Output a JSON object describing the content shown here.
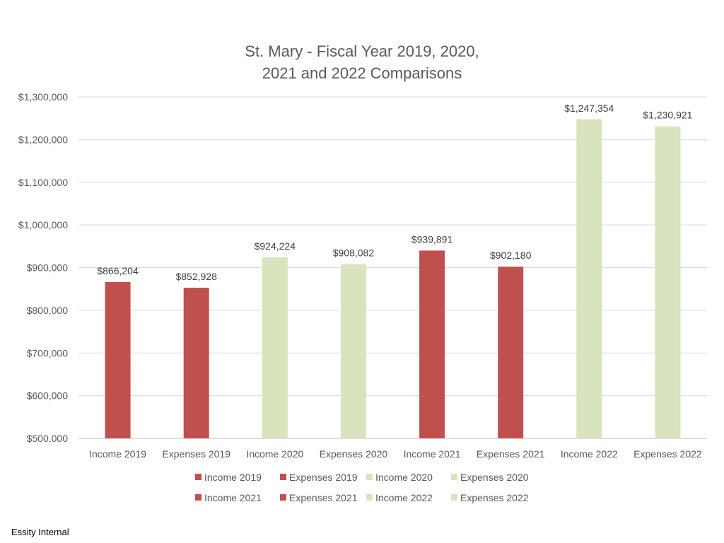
{
  "chart_data": {
    "type": "bar",
    "title_lines": [
      "St. Mary - Fiscal Year 2019, 2020,",
      "2021 and 2022 Comparisons"
    ],
    "categories": [
      "Income 2019",
      "Expenses 2019",
      "Income 2020",
      "Expenses 2020",
      "Income 2021",
      "Expenses 2021",
      "Income 2022",
      "Expenses 2022"
    ],
    "values": [
      866204,
      852928,
      924224,
      908082,
      939891,
      902180,
      1247354,
      1230921
    ],
    "value_labels": [
      "$866,204",
      "$852,928",
      "$924,224",
      "$908,082",
      "$939,891",
      "$902,180",
      "$1,247,354",
      "$1,230,921"
    ],
    "bar_colors": [
      "#c0504d",
      "#c0504d",
      "#d7e4bd",
      "#d7e4bd",
      "#c0504d",
      "#c0504d",
      "#d7e4bd",
      "#d7e4bd"
    ],
    "ylim": [
      500000,
      1300000
    ],
    "yticks": [
      500000,
      600000,
      700000,
      800000,
      900000,
      1000000,
      1100000,
      1200000,
      1300000
    ],
    "ytick_labels": [
      "$500,000",
      "$600,000",
      "$700,000",
      "$800,000",
      "$900,000",
      "$1,000,000",
      "$1,100,000",
      "$1,200,000",
      "$1,300,000"
    ],
    "grid": true,
    "legend": {
      "placement": "bottom",
      "entries": [
        {
          "label": "Income 2019",
          "color": "#c0504d"
        },
        {
          "label": "Expenses 2019",
          "color": "#c0504d"
        },
        {
          "label": "Income 2020",
          "color": "#d7e4bd"
        },
        {
          "label": "Expenses 2020",
          "color": "#d7e4bd"
        },
        {
          "label": "Income 2021",
          "color": "#c0504d"
        },
        {
          "label": "Expenses 2021",
          "color": "#c0504d"
        },
        {
          "label": "Income 2022",
          "color": "#d7e4bd"
        },
        {
          "label": "Expenses 2022",
          "color": "#d7e4bd"
        }
      ]
    }
  },
  "footer": "Essity Internal"
}
